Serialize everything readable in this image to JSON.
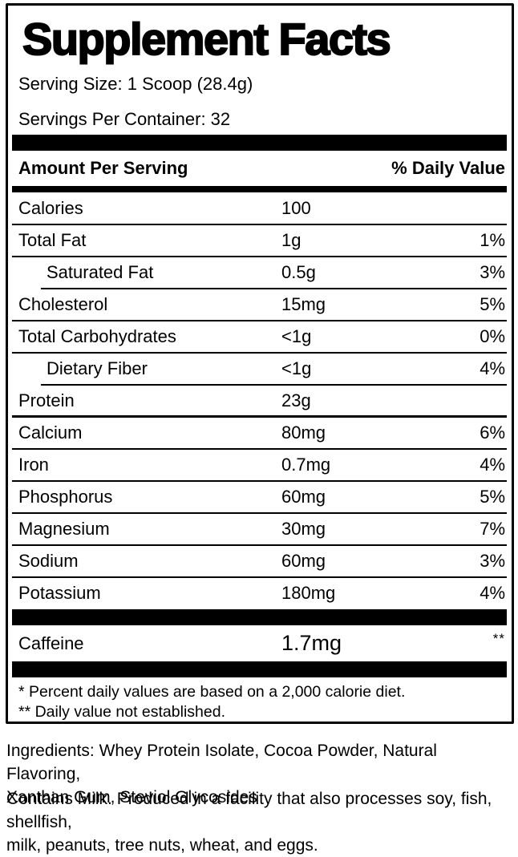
{
  "label": {
    "title": "Supplement Facts",
    "serving_size": "Serving Size: 1 Scoop (28.4g)",
    "servings_per_container": "Servings Per Container: 32",
    "header": {
      "amount_column": "Amount Per Serving",
      "daily_value_column": "% Daily Value"
    },
    "rows": [
      {
        "name": "Calories",
        "amount": "100",
        "dv": "",
        "indent": false,
        "thicksep": false
      },
      {
        "name": "Total Fat",
        "amount": "1g",
        "dv": "1%",
        "indent": false,
        "thicksep": false
      },
      {
        "name": "Saturated Fat",
        "amount": "0.5g",
        "dv": "3%",
        "indent": true,
        "thicksep": false
      },
      {
        "name": "Cholesterol",
        "amount": "15mg",
        "dv": "5%",
        "indent": false,
        "thicksep": false
      },
      {
        "name": "Total Carbohydrates",
        "amount": "<1g",
        "dv": "0%",
        "indent": false,
        "thicksep": false
      },
      {
        "name": "Dietary Fiber",
        "amount": "<1g",
        "dv": "4%",
        "indent": true,
        "thicksep": false
      },
      {
        "name": "Protein",
        "amount": "23g",
        "dv": "",
        "indent": false,
        "thicksep": true
      },
      {
        "name": "Calcium",
        "amount": "80mg",
        "dv": "6%",
        "indent": false,
        "thicksep": false
      },
      {
        "name": "Iron",
        "amount": "0.7mg",
        "dv": "4%",
        "indent": false,
        "thicksep": false
      },
      {
        "name": "Phosphorus",
        "amount": "60mg",
        "dv": "5%",
        "indent": false,
        "thicksep": false
      },
      {
        "name": "Magnesium",
        "amount": "30mg",
        "dv": "7%",
        "indent": false,
        "thicksep": false
      },
      {
        "name": "Sodium",
        "amount": "60mg",
        "dv": "3%",
        "indent": false,
        "thicksep": false
      },
      {
        "name": "Potassium",
        "amount": "180mg",
        "dv": "4%",
        "indent": false,
        "thicksep": false
      }
    ],
    "caffeine_row": {
      "name": "Caffeine",
      "amount": "1.7mg",
      "dv": "**"
    },
    "footnotes": [
      "* Percent daily values are based on a 2,000 calorie diet.",
      "** Daily value not established."
    ],
    "colors": {
      "ink": "#000000",
      "background": "#ffffff"
    }
  },
  "ingredients": "Ingredients: Whey Protein Isolate, Cocoa Powder, Natural Flavoring,\nXanthan Gum, Steviol Glycosides",
  "allergens": "Contains Milk. Produced in a facility that also processes soy, fish, shellfish,\nmilk, peanuts, tree nuts, wheat, and eggs."
}
